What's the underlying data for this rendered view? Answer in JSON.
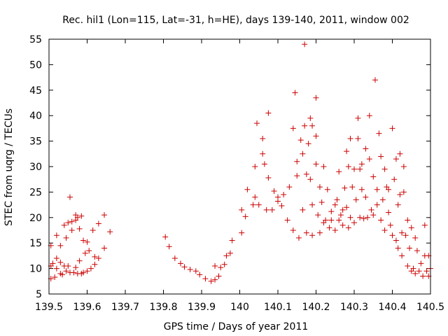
{
  "chart_data": {
    "type": "scatter",
    "title": "Rec. hil1 (Lon=115, Lat=-31, h=HE), days 139-140, 2011, window 002",
    "xlabel": "GPS time / Days of year 2011",
    "ylabel": "STEC from uqrg / TECUs",
    "xlim": [
      139.5,
      140.5
    ],
    "ylim": [
      5,
      55
    ],
    "x_ticks": [
      "139.5",
      "139.6",
      "139.7",
      "139.8",
      "139.9",
      "140",
      "140.1",
      "140.2",
      "140.3",
      "140.4",
      "140.5"
    ],
    "y_ticks": [
      "5",
      "10",
      "15",
      "20",
      "25",
      "30",
      "35",
      "40",
      "45",
      "50",
      "55"
    ],
    "grid": false,
    "legend": "none",
    "marker": "plus",
    "color": "#cc0000",
    "points": [
      [
        139.505,
        8.0
      ],
      [
        139.505,
        10.5
      ],
      [
        139.505,
        14.5
      ],
      [
        139.51,
        11.0
      ],
      [
        139.515,
        8.3
      ],
      [
        139.52,
        10.0
      ],
      [
        139.52,
        12.0
      ],
      [
        139.52,
        16.5
      ],
      [
        139.53,
        11.2
      ],
      [
        139.53,
        9.0
      ],
      [
        139.53,
        14.5
      ],
      [
        139.535,
        8.8
      ],
      [
        139.54,
        10.5
      ],
      [
        139.54,
        18.5
      ],
      [
        139.545,
        16.0
      ],
      [
        139.545,
        9.5
      ],
      [
        139.55,
        19.0
      ],
      [
        139.55,
        10.5
      ],
      [
        139.555,
        9.2
      ],
      [
        139.555,
        24.0
      ],
      [
        139.56,
        17.5
      ],
      [
        139.56,
        19.2
      ],
      [
        139.565,
        9.2
      ],
      [
        139.57,
        19.5
      ],
      [
        139.57,
        20.5
      ],
      [
        139.57,
        10.2
      ],
      [
        139.575,
        9.0
      ],
      [
        139.575,
        20.0
      ],
      [
        139.58,
        17.8
      ],
      [
        139.58,
        11.5
      ],
      [
        139.585,
        9.0
      ],
      [
        139.585,
        20.3
      ],
      [
        139.59,
        15.5
      ],
      [
        139.59,
        9.2
      ],
      [
        139.595,
        13.0
      ],
      [
        139.6,
        15.2
      ],
      [
        139.6,
        9.5
      ],
      [
        139.605,
        13.5
      ],
      [
        139.61,
        10.0
      ],
      [
        139.615,
        17.5
      ],
      [
        139.62,
        12.3
      ],
      [
        139.62,
        10.8
      ],
      [
        139.63,
        18.8
      ],
      [
        139.63,
        12.0
      ],
      [
        139.645,
        20.5
      ],
      [
        139.645,
        14.0
      ],
      [
        139.66,
        17.2
      ],
      [
        139.805,
        16.2
      ],
      [
        139.815,
        14.3
      ],
      [
        139.83,
        12.0
      ],
      [
        139.845,
        11.0
      ],
      [
        139.855,
        10.3
      ],
      [
        139.87,
        9.8
      ],
      [
        139.885,
        9.5
      ],
      [
        139.895,
        8.8
      ],
      [
        139.91,
        8.0
      ],
      [
        139.925,
        7.5
      ],
      [
        139.935,
        7.8
      ],
      [
        139.935,
        10.5
      ],
      [
        139.945,
        8.5
      ],
      [
        139.95,
        10.2
      ],
      [
        139.96,
        10.8
      ],
      [
        139.965,
        12.5
      ],
      [
        139.975,
        13.0
      ],
      [
        139.98,
        15.5
      ],
      [
        140.005,
        21.5
      ],
      [
        140.005,
        17.0
      ],
      [
        140.015,
        20.2
      ],
      [
        140.02,
        25.5
      ],
      [
        140.035,
        22.5
      ],
      [
        140.04,
        24.0
      ],
      [
        140.04,
        30.0
      ],
      [
        140.045,
        38.5
      ],
      [
        140.05,
        22.5
      ],
      [
        140.06,
        32.5
      ],
      [
        140.06,
        35.5
      ],
      [
        140.065,
        30.5
      ],
      [
        140.07,
        21.5
      ],
      [
        140.075,
        27.8
      ],
      [
        140.075,
        40.5
      ],
      [
        140.085,
        21.5
      ],
      [
        140.09,
        25.2
      ],
      [
        140.1,
        24.0
      ],
      [
        140.1,
        23.2
      ],
      [
        140.11,
        22.3
      ],
      [
        140.115,
        24.5
      ],
      [
        140.125,
        19.5
      ],
      [
        140.13,
        26.0
      ],
      [
        140.14,
        37.5
      ],
      [
        140.14,
        17.5
      ],
      [
        140.145,
        44.5
      ],
      [
        140.15,
        28.2
      ],
      [
        140.15,
        31.0
      ],
      [
        140.155,
        16.0
      ],
      [
        140.16,
        35.2
      ],
      [
        140.165,
        32.5
      ],
      [
        140.165,
        21.5
      ],
      [
        140.17,
        38.0
      ],
      [
        140.17,
        54.0
      ],
      [
        140.175,
        28.5
      ],
      [
        140.175,
        17.0
      ],
      [
        140.18,
        34.5
      ],
      [
        140.185,
        27.5
      ],
      [
        140.185,
        39.5
      ],
      [
        140.19,
        38.0
      ],
      [
        140.19,
        22.5
      ],
      [
        140.19,
        16.5
      ],
      [
        140.2,
        43.5
      ],
      [
        140.2,
        36.0
      ],
      [
        140.2,
        30.5
      ],
      [
        140.205,
        20.5
      ],
      [
        140.21,
        26.0
      ],
      [
        140.21,
        17.0
      ],
      [
        140.215,
        23.0
      ],
      [
        140.22,
        30.0
      ],
      [
        140.22,
        19.0
      ],
      [
        140.225,
        19.5
      ],
      [
        140.23,
        25.5
      ],
      [
        140.235,
        18.0
      ],
      [
        140.24,
        21.2
      ],
      [
        140.24,
        19.5
      ],
      [
        140.25,
        22.5
      ],
      [
        140.25,
        17.5
      ],
      [
        140.255,
        23.5
      ],
      [
        140.26,
        19.5
      ],
      [
        140.26,
        29.0
      ],
      [
        140.265,
        20.5
      ],
      [
        140.27,
        21.5
      ],
      [
        140.27,
        18.5
      ],
      [
        140.275,
        25.8
      ],
      [
        140.28,
        22.0
      ],
      [
        140.28,
        33.0
      ],
      [
        140.285,
        18.0
      ],
      [
        140.285,
        30.0
      ],
      [
        140.29,
        35.5
      ],
      [
        140.29,
        20.0
      ],
      [
        140.295,
        26.0
      ],
      [
        140.3,
        29.5
      ],
      [
        140.3,
        19.0
      ],
      [
        140.305,
        23.5
      ],
      [
        140.31,
        39.5
      ],
      [
        140.31,
        35.5
      ],
      [
        140.315,
        20.0
      ],
      [
        140.315,
        29.5
      ],
      [
        140.32,
        25.5
      ],
      [
        140.32,
        30.5
      ],
      [
        140.325,
        19.8
      ],
      [
        140.33,
        33.5
      ],
      [
        140.33,
        24.0
      ],
      [
        140.335,
        20.0
      ],
      [
        140.34,
        40.0
      ],
      [
        140.34,
        31.5
      ],
      [
        140.345,
        21.5
      ],
      [
        140.35,
        28.0
      ],
      [
        140.35,
        20.5
      ],
      [
        140.355,
        47.0
      ],
      [
        140.36,
        25.5
      ],
      [
        140.36,
        22.5
      ],
      [
        140.365,
        36.5
      ],
      [
        140.37,
        32.0
      ],
      [
        140.37,
        19.5
      ],
      [
        140.375,
        23.5
      ],
      [
        140.38,
        29.5
      ],
      [
        140.38,
        17.5
      ],
      [
        140.385,
        26.0
      ],
      [
        140.39,
        21.0
      ],
      [
        140.39,
        25.5
      ],
      [
        140.395,
        18.5
      ],
      [
        140.4,
        37.5
      ],
      [
        140.4,
        16.5
      ],
      [
        140.405,
        27.5
      ],
      [
        140.41,
        31.5
      ],
      [
        140.41,
        15.5
      ],
      [
        140.415,
        22.5
      ],
      [
        140.415,
        14.0
      ],
      [
        140.42,
        32.5
      ],
      [
        140.42,
        24.5
      ],
      [
        140.425,
        17.0
      ],
      [
        140.425,
        12.5
      ],
      [
        140.43,
        25.0
      ],
      [
        140.43,
        30.0
      ],
      [
        140.435,
        16.5
      ],
      [
        140.44,
        19.5
      ],
      [
        140.44,
        10.5
      ],
      [
        140.445,
        14.0
      ],
      [
        140.45,
        18.0
      ],
      [
        140.45,
        9.5
      ],
      [
        140.455,
        10.0
      ],
      [
        140.46,
        16.0
      ],
      [
        140.46,
        9.0
      ],
      [
        140.465,
        13.5
      ],
      [
        140.47,
        9.5
      ],
      [
        140.475,
        11.0
      ],
      [
        140.48,
        8.5
      ],
      [
        140.485,
        18.5
      ],
      [
        140.485,
        12.5
      ],
      [
        140.49,
        9.5
      ],
      [
        140.495,
        8.5
      ],
      [
        140.495,
        12.5
      ],
      [
        140.5,
        10.0
      ]
    ]
  }
}
